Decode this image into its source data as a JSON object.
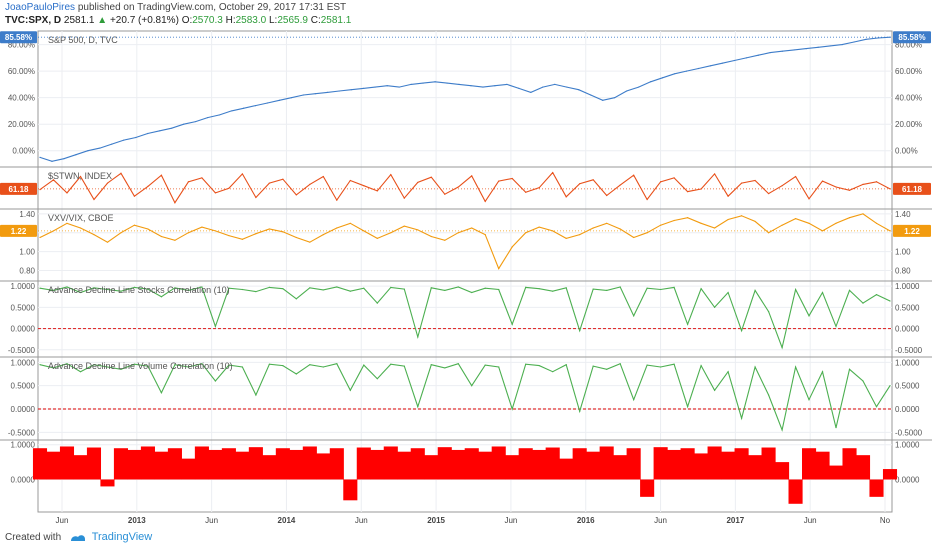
{
  "header": {
    "author": "JoaoPauloPires",
    "published": "published on TradingView.com, October 29, 2017 17:31 EST",
    "symbol": "TVC:SPX, D",
    "last": "2581.1",
    "change": "+20.7 (+0.81%)",
    "open_label": "O:",
    "open": "2570.3",
    "high_label": "H:",
    "high": "2583.0",
    "low_label": "L:",
    "low": "2565.9",
    "close_label": "C:",
    "close": "2581.1"
  },
  "footer": {
    "created_with": "Created with",
    "brand": "TradingView"
  },
  "colors": {
    "spx": "#3d7cc9",
    "ss": "#e8501a",
    "vxv": "#f29b0f",
    "corr": "#4caf50",
    "zero": "#e03030",
    "bar": "#ff0000",
    "badge_blue": "#3d7cc9"
  },
  "chart_data": [
    {
      "type": "line",
      "title": "S&P 500, D, TVC",
      "series": [
        {
          "values": [
            -5,
            -8,
            -6,
            -3,
            0,
            2,
            5,
            8,
            10,
            13,
            15,
            17,
            20,
            22,
            25,
            27,
            30,
            32,
            34,
            36,
            38,
            40,
            42,
            43,
            44,
            45,
            46,
            47,
            48,
            49,
            48,
            50,
            51,
            52,
            51,
            50,
            49,
            48,
            49,
            50,
            47,
            44,
            48,
            50,
            48,
            46,
            42,
            38,
            40,
            45,
            48,
            52,
            55,
            58,
            60,
            62,
            64,
            66,
            68,
            70,
            72,
            74,
            75,
            76,
            77,
            78,
            79,
            80,
            82,
            84,
            85,
            85.58
          ]
        }
      ],
      "ylim": [
        -10,
        88
      ],
      "yticks": [
        "0.00%",
        "20.00%",
        "40.00%",
        "60.00%",
        "80.00%"
      ],
      "last_label": "85.58%"
    },
    {
      "type": "line",
      "title": "$STWN, INDEX",
      "series": [
        {
          "values": [
            60,
            75,
            55,
            80,
            45,
            70,
            85,
            50,
            65,
            82,
            40,
            72,
            78,
            55,
            62,
            84,
            48,
            70,
            76,
            52,
            68,
            80,
            44,
            74,
            66,
            58,
            83,
            47,
            71,
            79,
            53,
            64,
            81,
            42,
            73,
            77,
            56,
            63,
            86,
            49,
            69,
            75,
            51,
            67,
            82,
            45,
            72,
            78,
            57,
            61,
            84,
            50,
            70,
            74,
            54,
            66,
            80,
            46,
            73,
            64,
            59,
            68,
            72,
            61.18
          ]
        }
      ],
      "ylim": [
        35,
        90
      ],
      "last_label": "61.18"
    },
    {
      "type": "line",
      "title": "VXV/VIX, CBOE",
      "series": [
        {
          "values": [
            1.15,
            1.22,
            1.3,
            1.25,
            1.18,
            1.1,
            1.2,
            1.28,
            1.24,
            1.16,
            1.12,
            1.2,
            1.26,
            1.22,
            1.17,
            1.13,
            1.19,
            1.24,
            1.21,
            1.15,
            1.1,
            1.18,
            1.25,
            1.3,
            1.22,
            1.14,
            1.2,
            1.27,
            1.23,
            1.16,
            1.12,
            1.2,
            1.25,
            1.18,
            0.82,
            1.05,
            1.2,
            1.26,
            1.22,
            1.14,
            1.18,
            1.25,
            1.3,
            1.24,
            1.15,
            1.2,
            1.28,
            1.33,
            1.36,
            1.3,
            1.25,
            1.34,
            1.38,
            1.32,
            1.2,
            1.28,
            1.35,
            1.3,
            1.22,
            1.3,
            1.36,
            1.4,
            1.3,
            1.22
          ]
        }
      ],
      "ylim": [
        0.72,
        1.42
      ],
      "yticks": [
        "0.80",
        "1.00",
        "1.20",
        "1.40"
      ],
      "last_label": "1.22"
    },
    {
      "type": "line",
      "title": "Advance Decline Line Stocks Correlation (10)",
      "series": [
        {
          "values": [
            0.95,
            0.9,
            0.98,
            0.85,
            0.96,
            0.92,
            0.88,
            0.97,
            0.93,
            0.75,
            0.96,
            0.9,
            0.98,
            0.05,
            0.95,
            0.92,
            0.87,
            0.97,
            0.94,
            0.7,
            0.96,
            0.91,
            0.98,
            0.88,
            0.95,
            0.6,
            0.97,
            0.93,
            -0.2,
            0.96,
            0.9,
            0.98,
            0.85,
            0.95,
            0.92,
            0.1,
            0.97,
            0.94,
            0.88,
            0.96,
            -0.05,
            0.93,
            0.9,
            0.98,
            0.3,
            0.95,
            0.92,
            0.97,
            0.1,
            0.94,
            0.5,
            0.85,
            -0.05,
            0.9,
            0.4,
            -0.45,
            0.92,
            0.3,
            0.85,
            0.05,
            0.9,
            0.6,
            0.8,
            0.65
          ]
        }
      ],
      "ylim": [
        -0.6,
        1.05
      ],
      "yticks": [
        "-0.5000",
        "0.0000",
        "0.5000",
        "1.0000"
      ],
      "reference_line": 0
    },
    {
      "type": "line",
      "title": "Advance Decline Line Volume Correlation (10)",
      "series": [
        {
          "values": [
            0.95,
            0.88,
            0.97,
            0.8,
            0.95,
            0.9,
            0.85,
            0.96,
            0.92,
            0.35,
            0.95,
            0.9,
            0.97,
            0.6,
            0.94,
            0.9,
            0.3,
            0.96,
            0.93,
            0.75,
            0.95,
            0.9,
            0.97,
            0.4,
            0.94,
            0.65,
            0.96,
            0.92,
            0.05,
            0.95,
            0.88,
            0.97,
            0.5,
            0.94,
            0.9,
            0.0,
            0.96,
            0.93,
            0.8,
            0.95,
            -0.05,
            0.92,
            0.85,
            0.97,
            0.2,
            0.94,
            0.9,
            0.96,
            0.05,
            0.93,
            0.4,
            0.8,
            -0.2,
            0.9,
            0.3,
            -0.45,
            0.9,
            0.2,
            0.8,
            -0.4,
            0.85,
            0.6,
            0.05,
            0.5
          ]
        }
      ],
      "ylim": [
        -0.6,
        1.05
      ],
      "yticks": [
        "-0.5000",
        "0.0000",
        "0.5000",
        "1.0000"
      ],
      "reference_line": 0
    },
    {
      "type": "area",
      "series": [
        {
          "values": [
            0.9,
            0.8,
            0.95,
            0.7,
            0.92,
            -0.2,
            0.9,
            0.85,
            0.95,
            0.8,
            0.9,
            0.6,
            0.95,
            0.85,
            0.9,
            0.8,
            0.93,
            0.7,
            0.9,
            0.85,
            0.95,
            0.75,
            0.9,
            -0.6,
            0.92,
            0.85,
            0.95,
            0.8,
            0.9,
            0.7,
            0.93,
            0.85,
            0.9,
            0.8,
            0.95,
            0.7,
            0.9,
            0.85,
            0.92,
            0.6,
            0.9,
            0.8,
            0.95,
            0.7,
            0.9,
            -0.5,
            0.93,
            0.85,
            0.9,
            0.75,
            0.95,
            0.8,
            0.9,
            0.7,
            0.92,
            0.5,
            -0.7,
            0.9,
            0.8,
            0.4,
            0.9,
            0.7,
            -0.5,
            0.3
          ]
        }
      ],
      "ylim": [
        -0.85,
        1.05
      ],
      "yticks": [
        "0.0000",
        "1.0000"
      ]
    }
  ],
  "x_axis": {
    "labels": [
      "Jun",
      "2013",
      "Jun",
      "2014",
      "Jun",
      "2015",
      "Jun",
      "2016",
      "Jun",
      "2017",
      "Jun",
      "No"
    ]
  }
}
